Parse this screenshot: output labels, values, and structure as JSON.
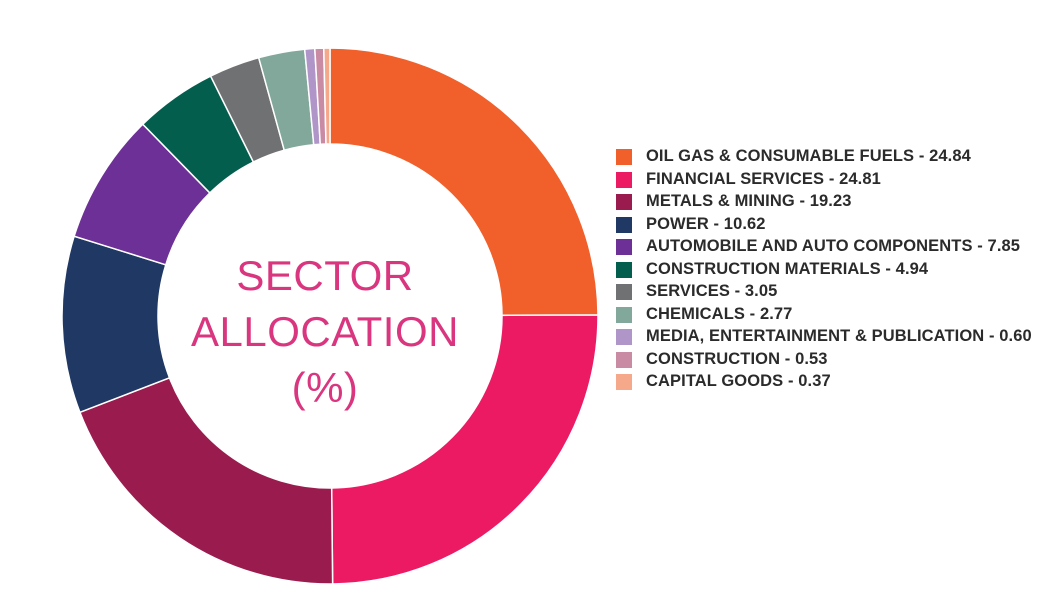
{
  "chart_data": {
    "type": "pie",
    "variant": "donut",
    "title_lines": [
      "SECTOR",
      "ALLOCATION",
      "(%)"
    ],
    "legend_position": "right",
    "slices": [
      {
        "label": "OIL GAS & CONSUMABLE FUELS - 24.84",
        "name": "OIL GAS & CONSUMABLE FUELS",
        "value": 24.84,
        "color": "#f15f2a"
      },
      {
        "label": "FINANCIAL SERVICES - 24.81",
        "name": "FINANCIAL SERVICES",
        "value": 24.81,
        "color": "#ec1a63"
      },
      {
        "label": "METALS & MINING - 19.23",
        "name": "METALS & MINING",
        "value": 19.23,
        "color": "#9a1c4f"
      },
      {
        "label": "POWER - 10.62",
        "name": "POWER",
        "value": 10.62,
        "color": "#1f3864"
      },
      {
        "label": "AUTOMOBILE AND AUTO COMPONENTS - 7.85",
        "name": "AUTOMOBILE AND AUTO COMPONENTS",
        "value": 7.85,
        "color": "#6d3096"
      },
      {
        "label": "CONSTRUCTION MATERIALS - 4.94",
        "name": "CONSTRUCTION MATERIALS",
        "value": 4.94,
        "color": "#035e4e"
      },
      {
        "label": "SERVICES - 3.05",
        "name": "SERVICES",
        "value": 3.05,
        "color": "#707172"
      },
      {
        "label": "CHEMICALS - 2.77",
        "name": "CHEMICALS",
        "value": 2.77,
        "color": "#82a79b"
      },
      {
        "label": "MEDIA, ENTERTAINMENT & PUBLICATION - 0.60",
        "name": "MEDIA, ENTERTAINMENT & PUBLICATION",
        "value": 0.6,
        "color": "#b095c8"
      },
      {
        "label": "CONSTRUCTION - 0.53",
        "name": "CONSTRUCTION",
        "value": 0.53,
        "color": "#c98ba4"
      },
      {
        "label": "CAPITAL GOODS - 0.37",
        "name": "CAPITAL GOODS",
        "value": 0.37,
        "color": "#f6a88a"
      }
    ]
  }
}
